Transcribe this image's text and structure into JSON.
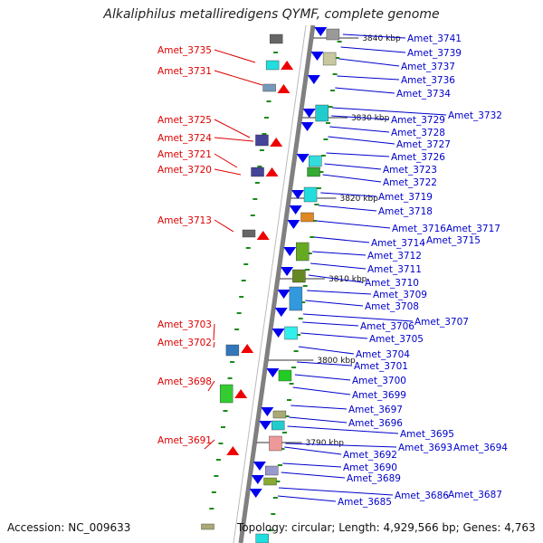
{
  "title": "Alkaliphilus metalliredigens QYMF, complete genome",
  "accession": "Accession: NC_009633",
  "topology": "Topology: circular; Length: 4,929,566 bp; Genes: 4,763",
  "colors": {
    "left_label": "#dd0000",
    "right_label": "#0000cc",
    "axis": "#808080",
    "tick": "#1a8a1a"
  },
  "kbp_marks": [
    "3840 kbp",
    "3830 kbp",
    "3820 kbp",
    "3810 kbp",
    "3800 kbp",
    "3790 kbp"
  ],
  "left_labels": [
    "Amet_3735",
    "Amet_3731",
    "Amet_3725",
    "Amet_3724",
    "Amet_3721",
    "Amet_3720",
    "Amet_3713",
    "Amet_3703",
    "Amet_3702",
    "Amet_3698",
    "Amet_3691"
  ],
  "right_labels": [
    "Amet_3741",
    "Amet_3739",
    "Amet_3737",
    "Amet_3736",
    "Amet_3734",
    "Amet_3732",
    "Amet_3729",
    "Amet_3728",
    "Amet_3727",
    "Amet_3726",
    "Amet_3723",
    "Amet_3722",
    "Amet_3719",
    "Amet_3718",
    "Amet_3716",
    "Amet_3717",
    "Amet_3714",
    "Amet_3715",
    "Amet_3712",
    "Amet_3711",
    "Amet_3710",
    "Amet_3709",
    "Amet_3708",
    "Amet_3707",
    "Amet_3706",
    "Amet_3705",
    "Amet_3704",
    "Amet_3701",
    "Amet_3700",
    "Amet_3699",
    "Amet_3697",
    "Amet_3696",
    "Amet_3695",
    "Amet_3693",
    "Amet_3694",
    "Amet_3692",
    "Amet_3690",
    "Amet_3689",
    "Amet_3686",
    "Amet_3687",
    "Amet_3685"
  ]
}
